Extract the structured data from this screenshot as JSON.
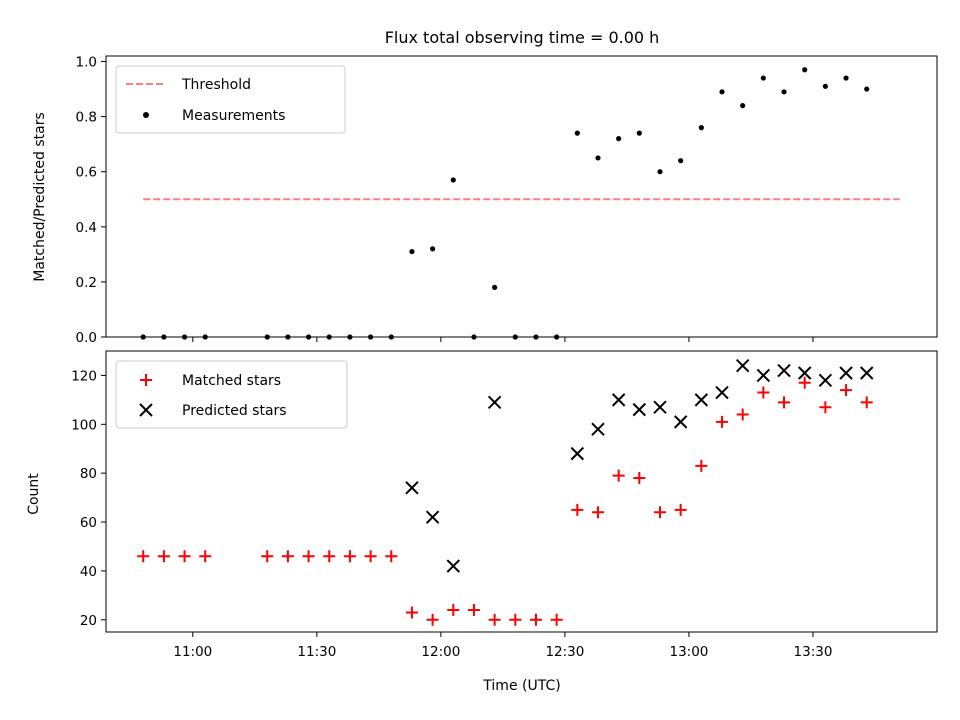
{
  "chart_data": [
    {
      "type": "scatter",
      "title": "Flux total observing time = 0.00 h",
      "xlabel": "",
      "ylabel": "Matched/Predicted stars",
      "xlim": [
        "10:39",
        "14:00"
      ],
      "ylim": [
        0,
        1.02
      ],
      "yticks": [
        "0.0",
        "0.2",
        "0.4",
        "0.6",
        "0.8",
        "1.0"
      ],
      "legend_position": "top-left",
      "threshold": {
        "name": "Threshold",
        "value": 0.5,
        "x_start": "10:48",
        "x_end": "13:51",
        "color": "#ff7f7f"
      },
      "series": [
        {
          "name": "Measurements",
          "color": "#000000",
          "x": [
            "10:48",
            "10:53",
            "10:58",
            "11:03",
            "11:18",
            "11:23",
            "11:28",
            "11:33",
            "11:38",
            "11:43",
            "11:48",
            "11:53",
            "11:58",
            "12:03",
            "12:08",
            "12:13",
            "12:18",
            "12:23",
            "12:28",
            "12:33",
            "12:38",
            "12:43",
            "12:48",
            "12:53",
            "12:58",
            "13:03",
            "13:08",
            "13:13",
            "13:18",
            "13:23",
            "13:28",
            "13:33",
            "13:38",
            "13:43"
          ],
          "values": [
            0,
            0,
            0,
            0,
            0,
            0,
            0,
            0,
            0,
            0,
            0,
            0.31,
            0.32,
            0.57,
            0,
            0.18,
            0,
            0,
            0,
            0.74,
            0.65,
            0.72,
            0.74,
            0.6,
            0.64,
            0.76,
            0.89,
            0.84,
            0.94,
            0.89,
            0.97,
            0.91,
            0.94,
            0.9
          ]
        }
      ]
    },
    {
      "type": "scatter",
      "title": "",
      "xlabel": "Time (UTC)",
      "ylabel": "Count",
      "xlim": [
        "10:39",
        "14:00"
      ],
      "ylim": [
        15,
        130
      ],
      "yticks": [
        "20",
        "40",
        "60",
        "80",
        "100",
        "120"
      ],
      "xticks": [
        "11:00",
        "11:30",
        "12:00",
        "12:30",
        "13:00",
        "13:30"
      ],
      "legend_position": "top-left",
      "series": [
        {
          "name": "Matched stars",
          "marker": "+",
          "color": "#ff0000",
          "x": [
            "10:48",
            "10:53",
            "10:58",
            "11:03",
            "11:18",
            "11:23",
            "11:28",
            "11:33",
            "11:38",
            "11:43",
            "11:48",
            "11:53",
            "11:58",
            "12:03",
            "12:08",
            "12:13",
            "12:18",
            "12:23",
            "12:28",
            "12:33",
            "12:38",
            "12:43",
            "12:48",
            "12:53",
            "12:58",
            "13:03",
            "13:08",
            "13:13",
            "13:18",
            "13:23",
            "13:28",
            "13:33",
            "13:38",
            "13:43"
          ],
          "values": [
            46,
            46,
            46,
            46,
            46,
            46,
            46,
            46,
            46,
            46,
            46,
            23,
            20,
            24,
            24,
            20,
            20,
            20,
            20,
            65,
            64,
            79,
            78,
            64,
            65,
            83,
            101,
            104,
            113,
            109,
            117,
            107,
            114,
            109
          ]
        },
        {
          "name": "Predicted stars",
          "marker": "x",
          "color": "#000000",
          "x": [
            "11:53",
            "11:58",
            "12:03",
            "12:13",
            "12:33",
            "12:38",
            "12:43",
            "12:48",
            "12:53",
            "12:58",
            "13:03",
            "13:08",
            "13:13",
            "13:18",
            "13:23",
            "13:28",
            "13:33",
            "13:38",
            "13:43"
          ],
          "values": [
            74,
            62,
            42,
            109,
            88,
            98,
            110,
            106,
            107,
            101,
            110,
            113,
            124,
            120,
            122,
            121,
            118,
            121,
            121
          ]
        }
      ]
    }
  ]
}
